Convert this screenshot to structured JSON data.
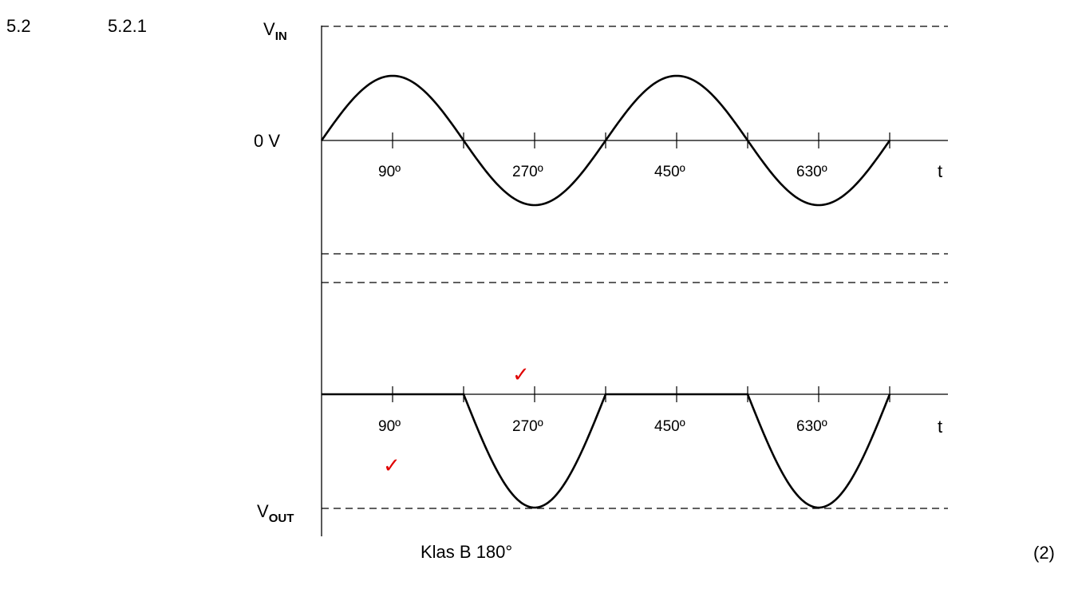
{
  "question": {
    "number": "5.2",
    "sub_number": "5.2.1",
    "marks": "(2)"
  },
  "input_graph": {
    "v_label_main": "V",
    "v_label_sub": "IN",
    "zero_label": "0 V",
    "t_label": "t",
    "degree_labels": [
      "90º",
      "270º",
      "450º",
      "630º"
    ]
  },
  "output_graph": {
    "v_label_main": "V",
    "v_label_sub": "OUT",
    "t_label": "t",
    "degree_labels": [
      "90º",
      "270º",
      "450º",
      "630º"
    ],
    "class_label": "Klas B 180°"
  },
  "marks_checks": [
    "✓",
    "✓"
  ],
  "colors": {
    "line": "#000000",
    "check": "#e00000"
  }
}
